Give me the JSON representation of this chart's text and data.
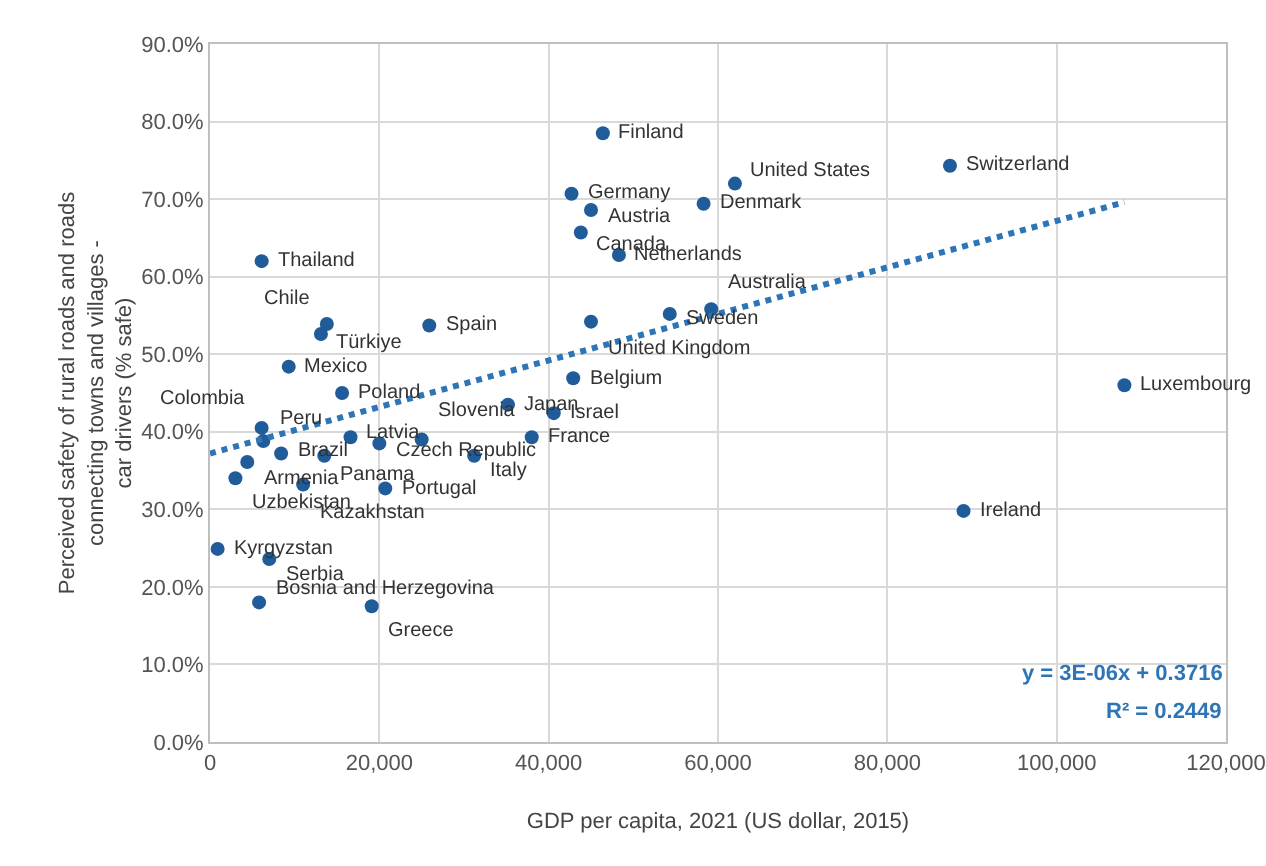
{
  "chart_data": {
    "type": "scatter",
    "xlabel": "GDP per capita, 2021 (US dollar, 2015)",
    "ylabel": "Perceived safety of rural roads and roads connecting towns and villages - car drivers (% safe)",
    "xlim": [
      0,
      120000
    ],
    "xticks": [
      {
        "value": 0,
        "label": "0"
      },
      {
        "value": 20000,
        "label": "20,000"
      },
      {
        "value": 40000,
        "label": "40,000"
      },
      {
        "value": 60000,
        "label": "60,000"
      },
      {
        "value": 80000,
        "label": "80,000"
      },
      {
        "value": 100000,
        "label": "100,000"
      },
      {
        "value": 120000,
        "label": "120,000"
      }
    ],
    "ylim": [
      0,
      90
    ],
    "yticks": [
      {
        "value": 0,
        "label": "0.0%"
      },
      {
        "value": 10,
        "label": "10.0%"
      },
      {
        "value": 20,
        "label": "20.0%"
      },
      {
        "value": 30,
        "label": "30.0%"
      },
      {
        "value": 40,
        "label": "40.0%"
      },
      {
        "value": 50,
        "label": "50.0%"
      },
      {
        "value": 60,
        "label": "60.0%"
      },
      {
        "value": 70,
        "label": "70.0%"
      },
      {
        "value": 80,
        "label": "80.0%"
      },
      {
        "value": 90,
        "label": "90.0%"
      }
    ],
    "grid": true,
    "marker": "circle",
    "series": [
      {
        "color": "#1f5c99",
        "x": [
          46400,
          87400,
          62000,
          42700,
          45000,
          58300,
          43800,
          48300,
          6100,
          13800,
          13100,
          25900,
          9300,
          6100,
          6300,
          15600,
          8400,
          4400,
          3000,
          11000,
          13500,
          16600,
          20000,
          25000,
          35200,
          31200,
          20700,
          38000,
          40600,
          42900,
          45000,
          54300,
          59200,
          108000,
          89000,
          900,
          7000,
          5800,
          19100
        ],
        "values": [
          78.5,
          74.3,
          72,
          70.7,
          68.6,
          69.4,
          65.7,
          62.8,
          62,
          53.9,
          52.6,
          53.7,
          48.4,
          40.5,
          38.8,
          45,
          37.2,
          36.1,
          34,
          33.2,
          36.9,
          39.3,
          38.5,
          39,
          43.5,
          36.9,
          32.7,
          39.3,
          42.4,
          46.9,
          54.2,
          55.2,
          55.8,
          46,
          29.8,
          24.9,
          23.6,
          18,
          17.5
        ],
        "value_labels": [
          "Finland",
          "Switzerland",
          "United States",
          "Germany",
          "Austria",
          "Denmark",
          "Canada",
          "Netherlands",
          "Thailand",
          "Chile",
          "Türkiye",
          "Spain",
          "Mexico",
          "Colombia",
          "Peru",
          "Poland",
          "Brazil",
          "Armenia",
          "Uzbekistan",
          "Kazakhstan",
          "Panama",
          "Latvia",
          "Czech Republic",
          "Slovenia",
          "Japan",
          "Italy",
          "Portugal",
          "France",
          "Israel",
          "Belgium",
          "United Kingdom",
          "Sweden",
          "Australia",
          "Luxembourg",
          "Ireland",
          "Kyrgyzstan",
          "Serbia",
          "Bosnia and Herzegovina",
          "Greece"
        ]
      },
      {
        "type": "line",
        "color": "#2e75b6",
        "line_style": "dotted",
        "marker": "none",
        "x": [
          0,
          108000
        ],
        "values": [
          37.2,
          69.6
        ]
      }
    ],
    "annotations": [
      "y = 3E-06x + 0.3716",
      "R² = 0.2449"
    ]
  }
}
